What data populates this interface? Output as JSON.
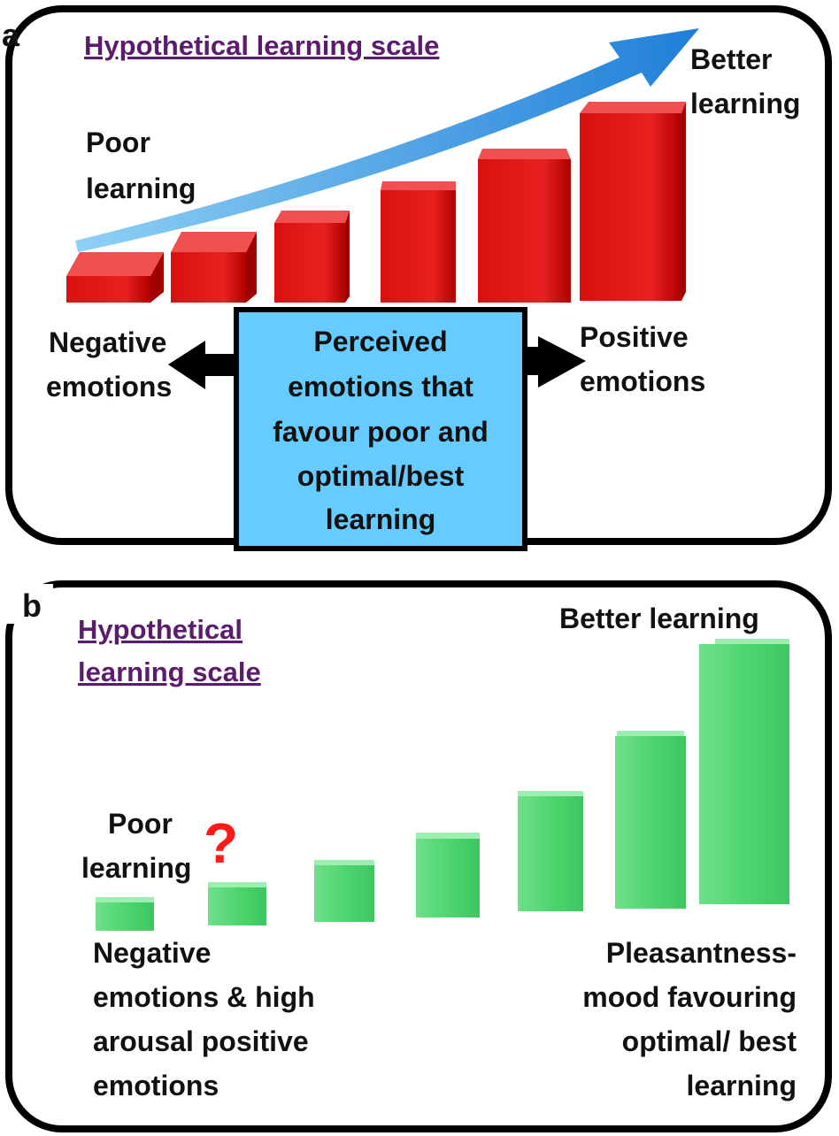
{
  "panel_a": {
    "label": "a",
    "title": "Hypothetical learning scale",
    "poor_learning": [
      "Poor",
      "learning"
    ],
    "better_learning": [
      "Better",
      "learning"
    ],
    "negative": [
      "Negative",
      "emotions"
    ],
    "positive": [
      "Positive",
      "emotions"
    ],
    "center_box": [
      "Perceived",
      "emotions that",
      "favour poor and",
      "optimal/best",
      "learning"
    ]
  },
  "panel_b": {
    "label": "b",
    "title": [
      "Hypothetical",
      "learning scale"
    ],
    "better_learning": "Better learning",
    "poor_learning": [
      "Poor",
      "learning"
    ],
    "question": "?",
    "left_caption": [
      "Negative",
      "emotions & high",
      "arousal positive",
      "emotions"
    ],
    "right_caption": [
      "Pleasantness-",
      "mood favouring",
      "optimal/ best",
      "learning"
    ]
  }
}
